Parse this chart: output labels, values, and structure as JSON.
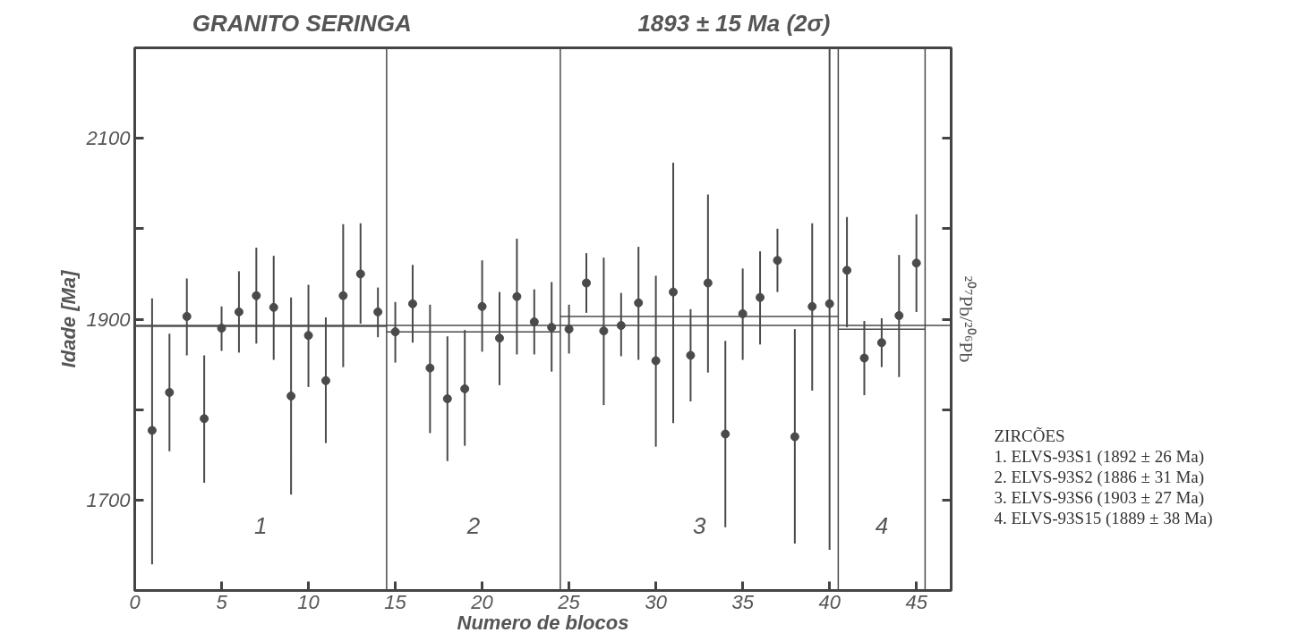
{
  "chart_data": {
    "type": "scatter",
    "title": "GRANITO   SERINGA",
    "subtitle": "1893 ± 15 Ma (2σ)",
    "xlabel": "Numero de blocos",
    "ylabel": "Idade [Ma]",
    "y2label": "²⁰⁷Pb/²⁰⁶Pb",
    "x": [
      1,
      2,
      3,
      4,
      5,
      6,
      7,
      8,
      9,
      10,
      11,
      12,
      13,
      14,
      15,
      16,
      17,
      18,
      19,
      20,
      21,
      22,
      23,
      24,
      25,
      26,
      27,
      28,
      29,
      30,
      31,
      32,
      33,
      34,
      35,
      36,
      37,
      38,
      39,
      40,
      41,
      42,
      43,
      44,
      45
    ],
    "series": [
      {
        "color": "#4a4a4a",
        "values": [
          1777,
          1819,
          1903,
          1790,
          1890,
          1908,
          1926,
          1913,
          1815,
          1882,
          1832,
          1926,
          1950,
          1908,
          1886,
          1917,
          1846,
          1812,
          1823,
          1914,
          1879,
          1925,
          1897,
          1891,
          1889,
          1940,
          1887,
          1893,
          1918,
          1854,
          1930,
          1860,
          1940,
          1773,
          1906,
          1924,
          1965,
          1770,
          1914,
          1917,
          1954,
          1857,
          1874,
          1904,
          1962
        ],
        "errors": [
          [
            1629,
            1923
          ],
          [
            1754,
            1884
          ],
          [
            1860,
            1945
          ],
          [
            1719,
            1860
          ],
          [
            1865,
            1914
          ],
          [
            1863,
            1953
          ],
          [
            1873,
            1979
          ],
          [
            1855,
            1970
          ],
          [
            1706,
            1924
          ],
          [
            1825,
            1938
          ],
          [
            1763,
            1902
          ],
          [
            1847,
            2005
          ],
          [
            1895,
            2006
          ],
          [
            1880,
            1935
          ],
          [
            1852,
            1919
          ],
          [
            1874,
            1960
          ],
          [
            1774,
            1916
          ],
          [
            1743,
            1881
          ],
          [
            1760,
            1888
          ],
          [
            1864,
            1965
          ],
          [
            1827,
            1930
          ],
          [
            1861,
            1989
          ],
          [
            1861,
            1933
          ],
          [
            1842,
            1941
          ],
          [
            1862,
            1916
          ],
          [
            1907,
            1973
          ],
          [
            1805,
            1968
          ],
          [
            1859,
            1929
          ],
          [
            1855,
            1980
          ],
          [
            1759,
            1948
          ],
          [
            1785,
            2073
          ],
          [
            1809,
            1911
          ],
          [
            1841,
            2038
          ],
          [
            1670,
            1876
          ],
          [
            1855,
            1956
          ],
          [
            1872,
            1975
          ],
          [
            1930,
            2000
          ],
          [
            1652,
            1889
          ],
          [
            1821,
            2006
          ],
          [
            1645,
            2200
          ],
          [
            1891,
            2013
          ],
          [
            1816,
            1898
          ],
          [
            1847,
            1901
          ],
          [
            1836,
            1971
          ],
          [
            1908,
            2016
          ]
        ]
      },
      {
        "type": "line",
        "marker": "none",
        "color": "#4a4a4a",
        "x": [
          0,
          14.5
        ],
        "values": [
          1892,
          1892
        ]
      },
      {
        "type": "line",
        "marker": "none",
        "color": "#4a4a4a",
        "x": [
          14.5,
          24.5
        ],
        "values": [
          1886,
          1886
        ]
      },
      {
        "type": "line",
        "marker": "none",
        "color": "#4a4a4a",
        "x": [
          24.5,
          40.5
        ],
        "values": [
          1903,
          1903
        ]
      },
      {
        "type": "line",
        "marker": "none",
        "color": "#4a4a4a",
        "x": [
          40.5,
          45.5
        ],
        "values": [
          1889,
          1889
        ]
      }
    ],
    "ref_lines": [
      {
        "axis": "y",
        "value": 1893,
        "color": "#4a4a4a"
      },
      {
        "axis": "x",
        "value": 14.5,
        "color": "#4a4a4a"
      },
      {
        "axis": "x",
        "value": 24.5,
        "color": "#4a4a4a"
      },
      {
        "axis": "x",
        "value": 40.5,
        "color": "#4a4a4a"
      },
      {
        "axis": "x",
        "value": 45.5,
        "color": "#4a4a4a"
      }
    ],
    "annotations": [
      "1",
      "2",
      "3",
      "4",
      "ZIRCÕES",
      "1. ELVS-93S1   (1892 ± 26 Ma)",
      "2. ELVS-93S2   (1886 ± 31 Ma)",
      "3. ELVS-93S6   (1903 ± 27 Ma)",
      "4. ELVS-93S15 (1889 ± 38 Ma)"
    ],
    "xlim": [
      0,
      47
    ],
    "ylim": [
      1600,
      2200
    ],
    "xticks": [
      0,
      5,
      10,
      15,
      20,
      25,
      30,
      35,
      40,
      45
    ],
    "yticks": [
      {
        "value": 1800,
        "label": null
      },
      1700,
      1900,
      {
        "value": 2000,
        "label": null
      },
      2100
    ],
    "marker": "circle",
    "line_style": "solid",
    "grid": false
  }
}
